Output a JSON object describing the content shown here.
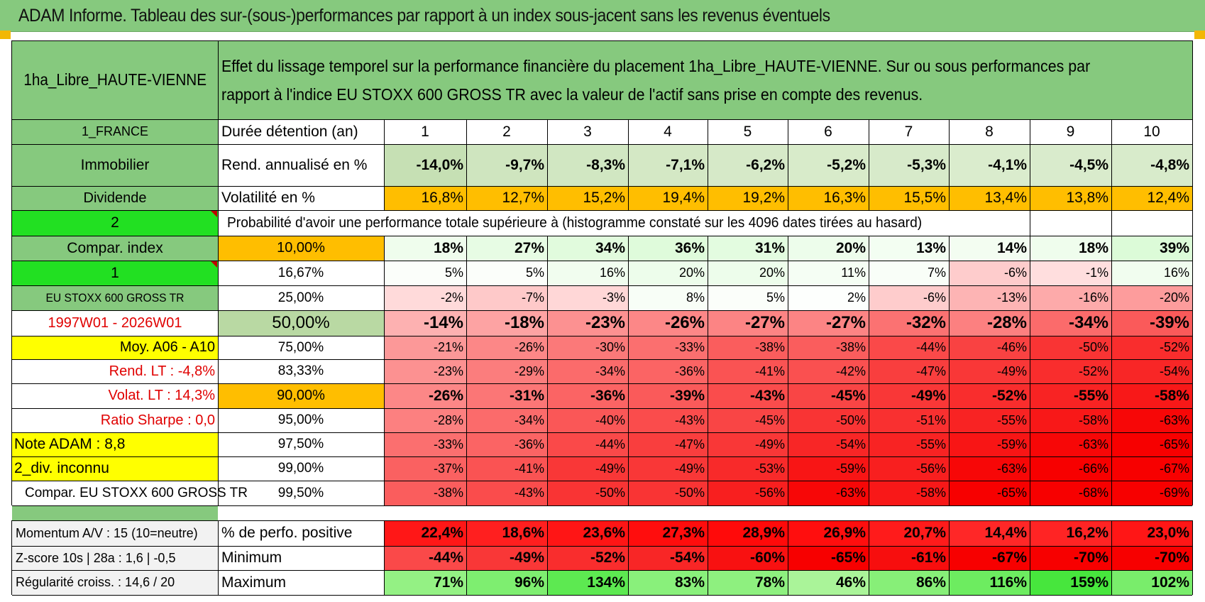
{
  "title": "ADAM Informe. Tableau des sur-(sous-)performances par rapport à un index sous-jacent sans les revenus éventuels",
  "asset_name": "1ha_Libre_HAUTE-VIENNE",
  "description": "Effet du lissage temporel sur la performance financière du placement 1ha_Libre_HAUTE-VIENNE. Sur ou sous performances par rapport à l'indice EU STOXX 600 GROSS TR avec la valeur de l'actif sans prise en compte des revenus.",
  "left_labels": {
    "country": "1_FRANCE",
    "category": "Immobilier",
    "type": "Dividende",
    "selector_2": "2",
    "compar_index": "Compar. index",
    "selector_1": "1",
    "index_name": "EU STOXX 600 GROSS TR",
    "period": "1997W01 - 2026W01",
    "moy": "Moy. A06 - A10",
    "rend_lt": "Rend. LT :    -4,8%",
    "volat_lt": "Volat. LT :    14,3%",
    "sharpe": "Ratio Sharpe :     0,0",
    "note": "Note ADAM : 8,8",
    "div": "2_div. inconnu",
    "compar": "Compar. EU STOXX 600 GROSS TR",
    "momentum": "Momentum A/V : 15 (10=neutre)",
    "zscore": "Z-score 10s | 28a : 1,6 | -0,5",
    "regularite": "Régularité croiss. : 14,6 / 20"
  },
  "row_labels": {
    "duree": "Durée détention (an)",
    "rend": "Rend. annualisé en %",
    "vol": "Volatilité en %",
    "proba": "Probabilité d'avoir une performance totale supérieure à (histogramme constaté sur les 4096 dates tirées au hasard)",
    "pos": "% de perfo. positive",
    "min": "Minimum",
    "max": "Maximum"
  },
  "years": [
    "1",
    "2",
    "3",
    "4",
    "5",
    "6",
    "7",
    "8",
    "9",
    "10"
  ],
  "rend": [
    "-14,0%",
    "-9,7%",
    "-8,3%",
    "-7,1%",
    "-6,2%",
    "-5,2%",
    "-5,3%",
    "-4,1%",
    "-4,5%",
    "-4,8%"
  ],
  "vol": [
    "16,8%",
    "12,7%",
    "15,2%",
    "19,4%",
    "19,2%",
    "16,3%",
    "15,5%",
    "13,4%",
    "13,8%",
    "12,4%"
  ],
  "quantile_rows": [
    {
      "pct": "10,00%",
      "values": [
        "18%",
        "27%",
        "34%",
        "36%",
        "31%",
        "20%",
        "13%",
        "14%",
        "18%",
        "39%"
      ]
    },
    {
      "pct": "16,67%",
      "values": [
        "5%",
        "5%",
        "16%",
        "20%",
        "20%",
        "11%",
        "7%",
        "-6%",
        "-1%",
        "16%"
      ]
    },
    {
      "pct": "25,00%",
      "values": [
        "-2%",
        "-7%",
        "-3%",
        "8%",
        "5%",
        "2%",
        "-6%",
        "-13%",
        "-16%",
        "-20%"
      ]
    },
    {
      "pct": "50,00%",
      "values": [
        "-14%",
        "-18%",
        "-23%",
        "-26%",
        "-27%",
        "-27%",
        "-32%",
        "-28%",
        "-34%",
        "-39%"
      ]
    },
    {
      "pct": "75,00%",
      "values": [
        "-21%",
        "-26%",
        "-30%",
        "-33%",
        "-38%",
        "-38%",
        "-44%",
        "-46%",
        "-50%",
        "-52%"
      ]
    },
    {
      "pct": "83,33%",
      "values": [
        "-23%",
        "-29%",
        "-34%",
        "-36%",
        "-41%",
        "-42%",
        "-47%",
        "-49%",
        "-52%",
        "-54%"
      ]
    },
    {
      "pct": "90,00%",
      "values": [
        "-26%",
        "-31%",
        "-36%",
        "-39%",
        "-43%",
        "-45%",
        "-49%",
        "-52%",
        "-55%",
        "-58%"
      ]
    },
    {
      "pct": "95,00%",
      "values": [
        "-28%",
        "-34%",
        "-40%",
        "-43%",
        "-45%",
        "-50%",
        "-51%",
        "-55%",
        "-58%",
        "-63%"
      ]
    },
    {
      "pct": "97,50%",
      "values": [
        "-33%",
        "-36%",
        "-44%",
        "-47%",
        "-49%",
        "-54%",
        "-55%",
        "-59%",
        "-63%",
        "-65%"
      ]
    },
    {
      "pct": "99,00%",
      "values": [
        "-37%",
        "-41%",
        "-49%",
        "-49%",
        "-53%",
        "-59%",
        "-56%",
        "-63%",
        "-66%",
        "-67%"
      ]
    },
    {
      "pct": "99,50%",
      "values": [
        "-38%",
        "-43%",
        "-50%",
        "-50%",
        "-56%",
        "-63%",
        "-58%",
        "-65%",
        "-68%",
        "-69%"
      ]
    }
  ],
  "positive": [
    "22,4%",
    "18,6%",
    "23,6%",
    "27,3%",
    "28,9%",
    "26,9%",
    "20,7%",
    "14,4%",
    "16,2%",
    "23,0%"
  ],
  "minimum": [
    "-44%",
    "-49%",
    "-52%",
    "-54%",
    "-60%",
    "-65%",
    "-61%",
    "-67%",
    "-70%",
    "-70%"
  ],
  "maximum": [
    "71%",
    "96%",
    "134%",
    "83%",
    "78%",
    "46%",
    "86%",
    "116%",
    "159%",
    "102%"
  ],
  "colors": {
    "header_green": "#86c97e",
    "bright_green": "#22e022",
    "orange": "#ffbe00",
    "yellow": "#ffff00",
    "red_text": "#e00000"
  }
}
